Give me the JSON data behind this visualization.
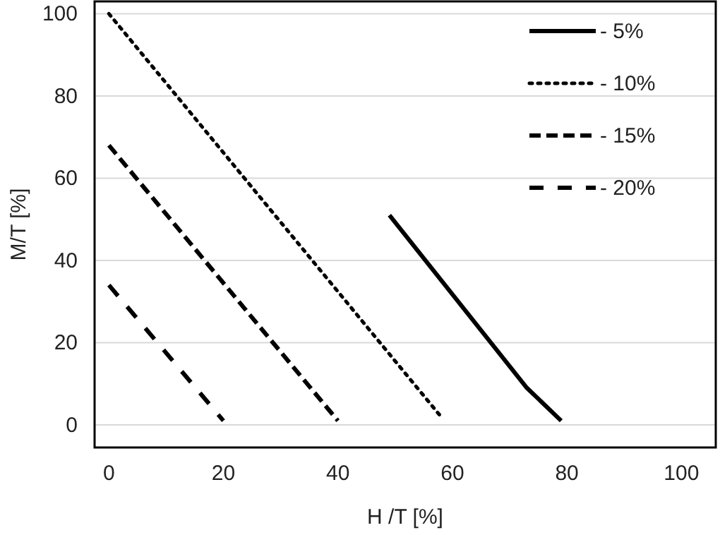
{
  "chart_data": {
    "type": "line",
    "xlabel": "H /T [%]",
    "ylabel": "M/T [%]",
    "xlim": [
      -2.5,
      106
    ],
    "ylim": [
      -5.5,
      103
    ],
    "xticks": [
      0,
      20,
      40,
      60,
      80,
      100
    ],
    "yticks": [
      0,
      20,
      40,
      60,
      80,
      100
    ],
    "grid": "y",
    "legend": "top right",
    "series": [
      {
        "name": "- 5%",
        "color": "#000000",
        "line_style": "solid",
        "x": [
          49,
          73,
          79
        ],
        "values": [
          51,
          9,
          1
        ]
      },
      {
        "name": "- 10%",
        "color": "#000000",
        "line_style": "dotted",
        "x": [
          0,
          58
        ],
        "values": [
          100,
          2
        ]
      },
      {
        "name": "- 15%",
        "color": "#000000",
        "line_style": "dashed",
        "x": [
          0,
          40
        ],
        "values": [
          68,
          1
        ]
      },
      {
        "name": "- 20%",
        "color": "#000000",
        "line_style": "longdashed",
        "x": [
          0,
          20
        ],
        "values": [
          34,
          1
        ]
      }
    ]
  }
}
